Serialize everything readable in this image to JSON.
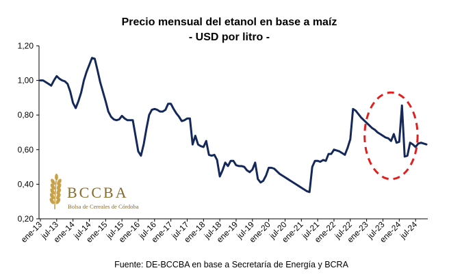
{
  "chart_data": {
    "type": "line",
    "title": "Precio mensual del etanol en base a maíz",
    "subtitle": "- USD por litro -",
    "xlabel": "",
    "ylabel": "",
    "ylim": [
      0.2,
      1.2
    ],
    "y_ticks": [
      "0,20",
      "0,40",
      "0,60",
      "0,80",
      "1,00",
      "1,20"
    ],
    "y_tick_values": [
      0.2,
      0.4,
      0.6,
      0.8,
      1.0,
      1.2
    ],
    "x_tick_labels": [
      "ene-13",
      "jul-13",
      "ene-14",
      "jul-14",
      "ene-15",
      "jul-15",
      "ene-16",
      "jul-16",
      "ene-17",
      "jul-17",
      "ene-18",
      "jul-18",
      "ene-19",
      "jul-19",
      "ene-20",
      "jul-20",
      "ene-21",
      "jul-21",
      "ene-22",
      "jul-22",
      "ene-23",
      "jul-23",
      "ene-24",
      "jul-24"
    ],
    "x_start": "ene-13",
    "x_end": "jul-24",
    "grid": false,
    "line_color": "#14285a",
    "series": [
      {
        "values": [
          1.0,
          1.0,
          0.99,
          0.98,
          0.97,
          1.0,
          1.025,
          1.01,
          1.0,
          0.995,
          0.98,
          0.935,
          0.87,
          0.84,
          0.88,
          0.93,
          1.0,
          1.05,
          1.09,
          1.13,
          1.125,
          1.06,
          0.99,
          0.935,
          0.88,
          0.82,
          0.79,
          0.775,
          0.77,
          0.775,
          0.795,
          0.78,
          0.77,
          0.77,
          0.77,
          0.68,
          0.59,
          0.565,
          0.63,
          0.72,
          0.8,
          0.83,
          0.835,
          0.83,
          0.82,
          0.82,
          0.83,
          0.865,
          0.865,
          0.835,
          0.81,
          0.79,
          0.765,
          0.77,
          0.78,
          0.78,
          0.63,
          0.68,
          0.63,
          0.62,
          0.615,
          0.65,
          0.57,
          0.565,
          0.57,
          0.54,
          0.445,
          0.48,
          0.525,
          0.505,
          0.535,
          0.535,
          0.51,
          0.505,
          0.505,
          0.5,
          0.48,
          0.47,
          0.485,
          0.525,
          0.43,
          0.41,
          0.42,
          0.45,
          0.495,
          0.495,
          0.49,
          0.475,
          0.46,
          0.45,
          0.44,
          0.43,
          0.42,
          0.41,
          0.4,
          0.39,
          0.38,
          0.37,
          0.36,
          0.355,
          0.5,
          0.535,
          0.535,
          0.53,
          0.54,
          0.535,
          0.575,
          0.575,
          0.6,
          0.595,
          0.59,
          0.58,
          0.57,
          0.61,
          0.66,
          0.835,
          0.825,
          0.805,
          0.785,
          0.77,
          0.755,
          0.74,
          0.725,
          0.715,
          0.7,
          0.69,
          0.68,
          0.67,
          0.665,
          0.65,
          0.69,
          0.64,
          0.645,
          0.855,
          0.56,
          0.565,
          0.64,
          0.63,
          0.615,
          0.635,
          0.64,
          0.635,
          0.63
        ]
      }
    ],
    "annotation": {
      "type": "dashed-ellipse",
      "color": "#e02020",
      "x_from": "ene-23",
      "x_to": "jul-24",
      "y_from": 0.43,
      "y_to": 0.93
    }
  },
  "logo": {
    "name": "BCCBA",
    "tagline": "Bolsa de Cereales de Córdoba",
    "color": "#c8a048"
  },
  "source": "Fuente: DE-BCCBA en base a Secretaría de Energía y BCRA"
}
